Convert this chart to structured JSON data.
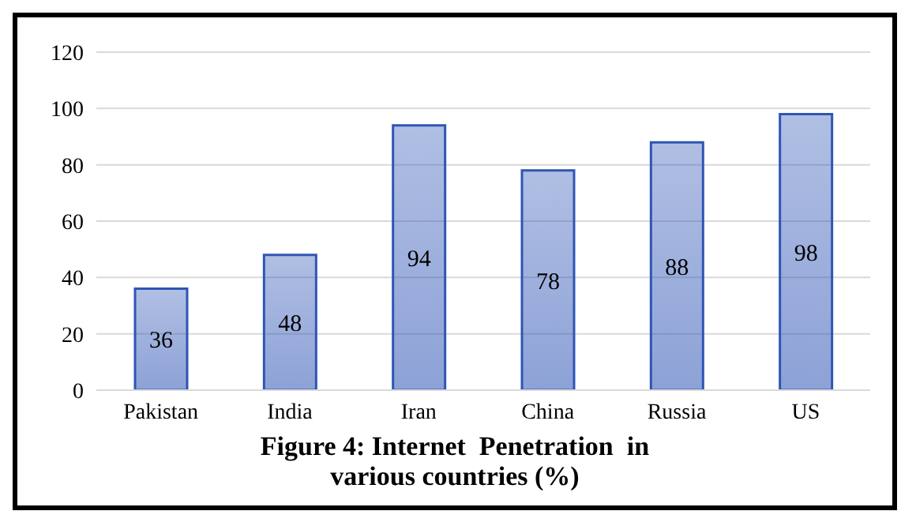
{
  "chart_data": {
    "type": "bar",
    "title": "Figure 4: Internet  Penetration  in various countries (%)",
    "categories": [
      "Pakistan",
      "India",
      "Iran",
      "China",
      "Russia",
      "US"
    ],
    "values": [
      36,
      48,
      94,
      78,
      88,
      98
    ],
    "color": "#2f55b5",
    "ylim": [
      0,
      120
    ],
    "yticks": [
      0,
      20,
      40,
      60,
      80,
      100,
      120
    ],
    "grid": "y",
    "data_labels": true
  }
}
